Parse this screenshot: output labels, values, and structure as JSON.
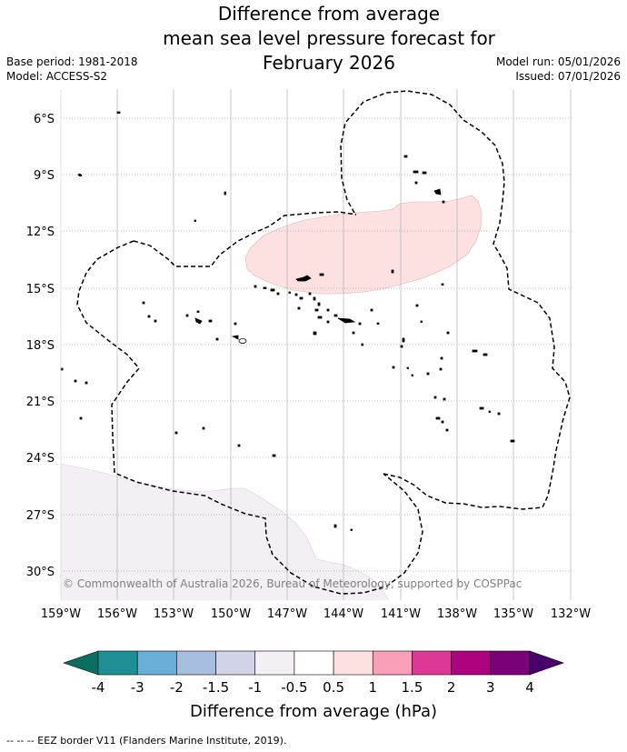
{
  "title": {
    "line1": "Difference from average",
    "line2": "mean sea level pressure forecast for",
    "line3": "February 2026"
  },
  "meta": {
    "base_period": "Base period: 1981-2018",
    "model": "Model: ACCESS-S2",
    "model_run": "Model run: 05/01/2026",
    "issued": "Issued: 07/01/2026"
  },
  "map": {
    "copyright": "© Commonwealth of Australia 2026, Bureau of Meteorology, supported by COSPPac",
    "lat_labels": [
      "6°S",
      "9°S",
      "12°S",
      "15°S",
      "18°S",
      "21°S",
      "24°S",
      "27°S",
      "30°S"
    ],
    "lon_labels": [
      "159°W",
      "156°W",
      "153°W",
      "150°W",
      "147°W",
      "144°W",
      "141°W",
      "138°W",
      "135°W",
      "132°W"
    ],
    "anomaly_colors": {
      "positive_0_5_to_1": "#fde0e0",
      "negative_0_5_to_1": "#f4eef5"
    }
  },
  "colorbar": {
    "title": "Difference from average (hPa)",
    "labels": [
      "-4",
      "-3",
      "-2",
      "-1.5",
      "-1",
      "-0.5",
      "0.5",
      "1",
      "1.5",
      "2",
      "3",
      "4"
    ],
    "colors": [
      "#1e8f94",
      "#6baed6",
      "#a8bedf",
      "#d1d3e6",
      "#f4eef5",
      "#ffffff",
      "#fde0e0",
      "#f9a0b8",
      "#de3897",
      "#ad037e",
      "#7a0177"
    ],
    "under_color": "#0b6e63",
    "over_color": "#49006a"
  },
  "footer": "-- -- -- EEZ border V11 (Flanders Marine Institute, 2019)."
}
